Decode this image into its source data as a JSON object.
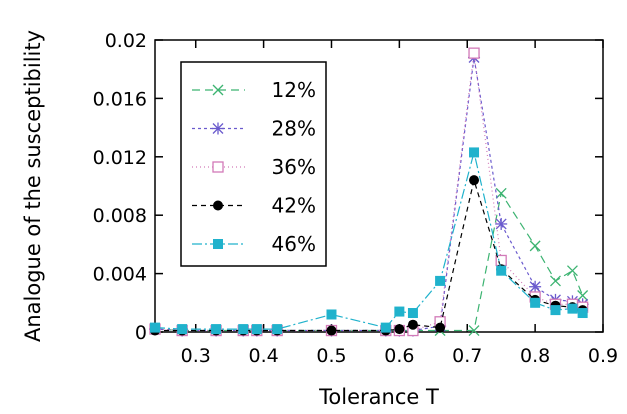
{
  "chart_data": {
    "type": "line",
    "title": "",
    "xlabel": "Tolerance T",
    "ylabel": "Analogue of the susceptibility",
    "xlim": [
      0.24,
      0.9
    ],
    "ylim": [
      0,
      0.02
    ],
    "xticks": [
      0.3,
      0.4,
      0.5,
      0.6,
      0.7,
      0.8,
      0.9
    ],
    "xtick_labels": [
      "0.3",
      "0.4",
      "0.5",
      "0.6",
      "0.7",
      "0.8",
      "0.9"
    ],
    "yticks": [
      0,
      0.004,
      0.008,
      0.012,
      0.016,
      0.02
    ],
    "ytick_labels": [
      "0",
      "0.004",
      "0.008",
      "0.012",
      "0.016",
      "0.02"
    ],
    "grid": false,
    "legend": "top-left",
    "series": [
      {
        "name": "12%",
        "color": "#3cb371",
        "marker": "x",
        "dash": "8,5",
        "x": [
          0.24,
          0.28,
          0.33,
          0.37,
          0.39,
          0.42,
          0.5,
          0.58,
          0.6,
          0.62,
          0.66,
          0.71,
          0.75,
          0.8,
          0.83,
          0.855,
          0.87
        ],
        "y": [
          0.0002,
          0.0001,
          0.0001,
          0.0001,
          0.0001,
          0.0001,
          0.0001,
          0.0001,
          0.0001,
          0.0001,
          0.0001,
          0.0001,
          0.0095,
          0.0059,
          0.0035,
          0.0042,
          0.0025
        ]
      },
      {
        "name": "28%",
        "color": "#6a5acd",
        "marker": "asterisk",
        "dash": "3,3",
        "x": [
          0.24,
          0.28,
          0.33,
          0.37,
          0.39,
          0.42,
          0.5,
          0.58,
          0.6,
          0.62,
          0.66,
          0.71,
          0.75,
          0.8,
          0.83,
          0.855,
          0.87
        ],
        "y": [
          0.0002,
          0.0001,
          0.0001,
          0.0001,
          0.0001,
          0.0001,
          0.0001,
          0.0001,
          0.0001,
          0.0001,
          0.0004,
          0.0188,
          0.0074,
          0.0031,
          0.0022,
          0.0021,
          0.0019
        ]
      },
      {
        "name": "36%",
        "color": "#d27ab8",
        "marker": "square-open",
        "dash": "1,3",
        "x": [
          0.24,
          0.28,
          0.33,
          0.37,
          0.39,
          0.42,
          0.5,
          0.58,
          0.6,
          0.62,
          0.66,
          0.71,
          0.75,
          0.8,
          0.83,
          0.855,
          0.87
        ],
        "y": [
          0.0002,
          0.0001,
          0.0001,
          0.0001,
          0.0001,
          0.0001,
          0.0001,
          0.0001,
          0.0001,
          0.0001,
          0.0007,
          0.0191,
          0.0049,
          0.0024,
          0.0019,
          0.0019,
          0.0017
        ]
      },
      {
        "name": "42%",
        "color": "#000000",
        "marker": "circle",
        "dash": "5,4",
        "x": [
          0.24,
          0.28,
          0.33,
          0.37,
          0.39,
          0.42,
          0.5,
          0.58,
          0.6,
          0.62,
          0.66,
          0.71,
          0.75,
          0.8,
          0.83,
          0.855,
          0.87
        ],
        "y": [
          0.0001,
          0.0001,
          0.0001,
          0.0001,
          0.0001,
          0.0001,
          0.0001,
          0.0001,
          0.0002,
          0.0005,
          0.0003,
          0.0104,
          0.0043,
          0.0022,
          0.0018,
          0.0017,
          0.0015
        ]
      },
      {
        "name": "46%",
        "color": "#20b2cc",
        "marker": "square",
        "dash": "10,3,2,3",
        "x": [
          0.24,
          0.28,
          0.33,
          0.37,
          0.39,
          0.42,
          0.5,
          0.58,
          0.6,
          0.62,
          0.66,
          0.71,
          0.75,
          0.8,
          0.83,
          0.855,
          0.87
        ],
        "y": [
          0.0003,
          0.0002,
          0.0002,
          0.0002,
          0.0002,
          0.0002,
          0.0012,
          0.0003,
          0.0014,
          0.0013,
          0.0035,
          0.0123,
          0.0042,
          0.002,
          0.0015,
          0.0016,
          0.0013
        ]
      }
    ]
  }
}
